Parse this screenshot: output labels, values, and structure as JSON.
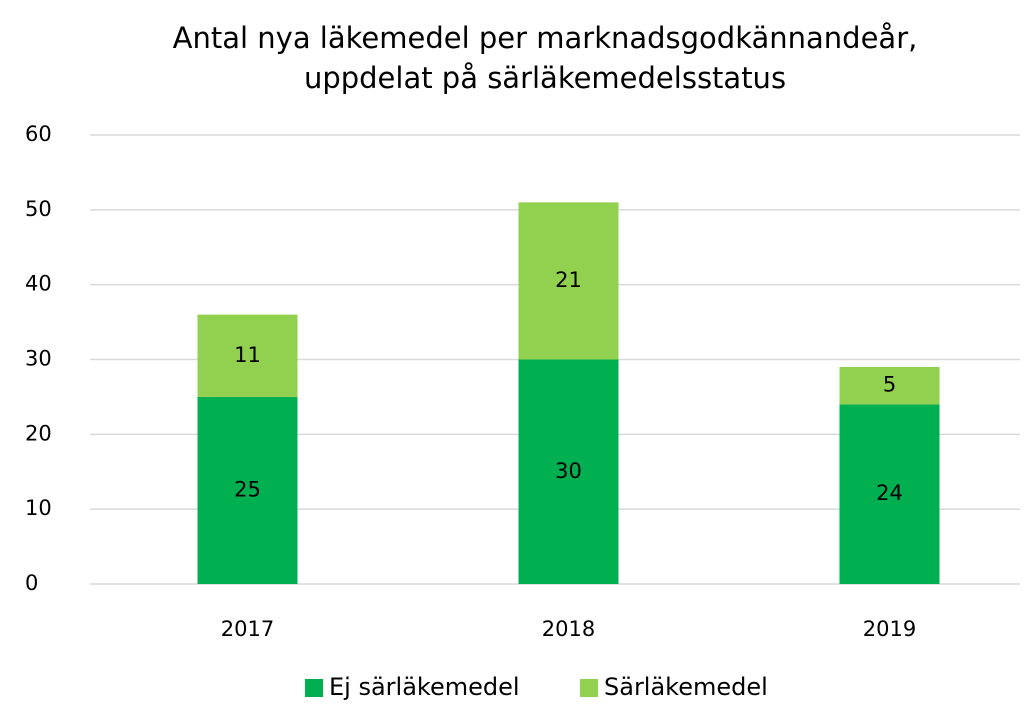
{
  "chart_data": {
    "type": "stacked_bar",
    "title": [
      "Antal nya läkemedel per marknadsgodkännandeår,",
      "uppdelat på särläkemedelsstatus"
    ],
    "categories": [
      "2017",
      "2018",
      "2019"
    ],
    "series": [
      {
        "name": "Ej särläkemedel",
        "color": "#00b050",
        "values": [
          25,
          30,
          24
        ]
      },
      {
        "name": "Särläkemedel",
        "color": "#92d050",
        "values": [
          11,
          21,
          5
        ]
      }
    ],
    "ylim": [
      0,
      60
    ],
    "yticks": [
      0,
      10,
      20,
      30,
      40,
      50,
      60
    ],
    "grid": true,
    "legend": "bottom"
  }
}
